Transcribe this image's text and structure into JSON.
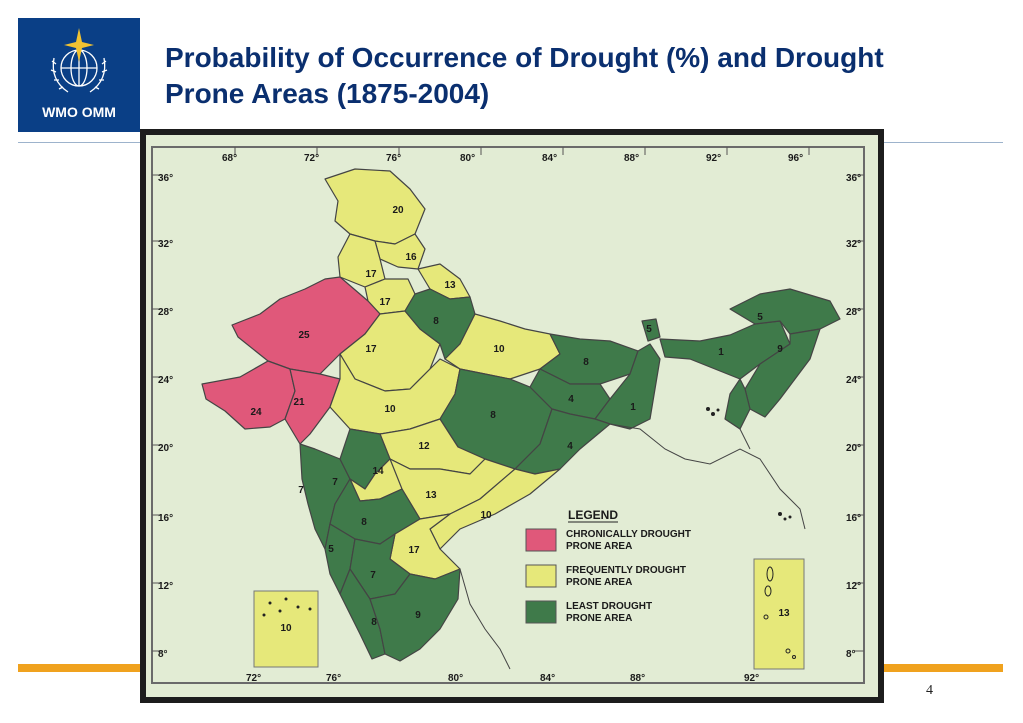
{
  "header": {
    "logo_text": "WMO OMM",
    "title_line1": "Probability of Occurrence of Drought (%) and Drought",
    "title_line2": "Prone Areas (1875-2004)"
  },
  "page_number": "4",
  "colors": {
    "chronic": "#e0587a",
    "frequent": "#e6e87a",
    "least": "#3f7a4a",
    "map_bg": "#e2ecd4",
    "brand_blue": "#0a3f86",
    "accent_orange": "#f0a21e"
  },
  "map": {
    "top_lon_labels": [
      "68°",
      "72°",
      "76°",
      "80°",
      "84°",
      "88°",
      "92°",
      "96°"
    ],
    "bottom_lon_labels": [
      "72°",
      "76°",
      "80°",
      "84°",
      "88°",
      "92°"
    ],
    "lat_labels": [
      "36°",
      "32°",
      "28°",
      "24°",
      "20°",
      "16°",
      "12°",
      "8°"
    ],
    "region_labels": [
      "20",
      "16",
      "17",
      "13",
      "17",
      "8",
      "25",
      "17",
      "10",
      "8",
      "5",
      "5",
      "1",
      "9",
      "24",
      "21",
      "10",
      "8",
      "4",
      "1",
      "12",
      "14",
      "7",
      "7",
      "4",
      "13",
      "8",
      "10",
      "5",
      "17",
      "7",
      "8",
      "9",
      "10",
      "13"
    ],
    "legend": {
      "title": "LEGEND",
      "items": [
        {
          "line1": "CHRONICALLY DROUGHT",
          "line2": "PRONE AREA",
          "color_key": "chronic"
        },
        {
          "line1": "FREQUENTLY DROUGHT",
          "line2": "PRONE AREA",
          "color_key": "frequent"
        },
        {
          "line1": "LEAST DROUGHT",
          "line2": "PRONE AREA",
          "color_key": "least"
        }
      ]
    }
  }
}
